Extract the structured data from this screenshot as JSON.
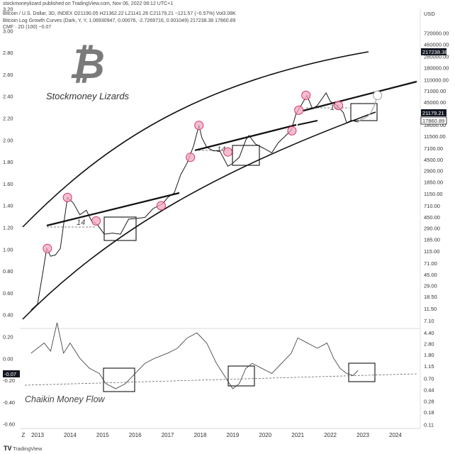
{
  "header": {
    "published": "stockmoneylizard published on TradingView.com, Nov 06, 2022 08:12 UTC+1",
    "symbol_line": "Bitcoin / U.S. Dollar, 3D, INDEX  O21190.05  H21362.22  L21141.26  C21179.21  −121.57 (−0.57%)  Vol3.08K",
    "indicator_line": "Bitcoin Log Growth Curves (Dark, Y, Y, 1.06930947, 0.00076, -2.7269716, 0.001049)  217238.38  17860.89",
    "cmf_line": "CMF · 2D (100)  −0.07"
  },
  "branding": {
    "logo_symbol": "₿",
    "logo_color": "#7a7a7a",
    "title": "Stockmoney Lizards",
    "cmf_title": "Chaikin Money Flow",
    "footer": "TradingView",
    "footer_icon": "tradingview-logo-icon"
  },
  "colors": {
    "price": "#1a1a1a",
    "projection": "#a8a8a8",
    "curve": "#111111",
    "circle_fill": "#f2aac2",
    "circle_stroke": "#d6336c",
    "badge_bg": "#131722",
    "badge_fg": "#ffffff",
    "cmf_line": "#333333"
  },
  "chart_data": {
    "type": "line",
    "title": "",
    "x_ticks": [
      "Z",
      "2013",
      "2014",
      "2015",
      "2016",
      "2017",
      "2018",
      "2019",
      "2020",
      "2021",
      "2022",
      "2023",
      "2024"
    ],
    "right_axis": {
      "unit": "USD",
      "ticks": [
        "720000.00",
        "460000.00",
        "280000.00",
        "180000.00",
        "110000.00",
        "71000.00",
        "45000.00",
        "29000.00",
        "18000.00",
        "11500.00",
        "7100.00",
        "4500.00",
        "2900.00",
        "1850.00",
        "1150.00",
        "710.00",
        "450.00",
        "290.00",
        "185.00",
        "115.00",
        "71.00",
        "45.00",
        "29.00",
        "18.50",
        "11.50",
        "7.10",
        "4.40",
        "2.80",
        "1.80",
        "1.15",
        "0.70",
        "0.44",
        "0.28",
        "0.18",
        "0.11"
      ],
      "scale": "log",
      "badges": [
        "217238.38",
        "21179.21",
        "17860.89"
      ]
    },
    "left_axis": {
      "ticks": [
        "3.20",
        "3.00",
        "2.80",
        "2.60",
        "2.40",
        "2.20",
        "2.00",
        "1.80",
        "1.60",
        "1.40",
        "1.20",
        "1.00",
        "0.80",
        "0.60",
        "0.40",
        "0.20",
        "0.00",
        "-0.20",
        "-0.40",
        "-0.60"
      ],
      "cmf_badge": "-0.07"
    },
    "series": [
      {
        "name": "Bitcoin / U.S. Dollar",
        "x": [
          2012.8,
          2013.0,
          2013.15,
          2013.28,
          2013.4,
          2013.55,
          2013.7,
          2013.82,
          2013.92,
          2014.1,
          2014.3,
          2014.5,
          2014.65,
          2014.85,
          2015.05,
          2015.3,
          2015.55,
          2015.8,
          2016.0,
          2016.3,
          2016.55,
          2016.85,
          2017.0,
          2017.2,
          2017.4,
          2017.6,
          2017.8,
          2017.96,
          2018.05,
          2018.2,
          2018.4,
          2018.6,
          2018.85,
          2018.96,
          2019.2,
          2019.4,
          2019.5,
          2019.7,
          2019.95,
          2020.2,
          2020.4,
          2020.6,
          2020.8,
          2020.95,
          2021.1,
          2021.28,
          2021.45,
          2021.6,
          2021.87,
          2022.0,
          2022.2,
          2022.4,
          2022.5,
          2022.65,
          2022.85
        ],
        "y": [
          11,
          14,
          45,
          130,
          95,
          100,
          130,
          400,
          1000,
          800,
          500,
          600,
          400,
          330,
          230,
          240,
          230,
          420,
          430,
          450,
          640,
          780,
          1000,
          1200,
          2500,
          4000,
          8000,
          18000,
          11000,
          7500,
          6500,
          6500,
          3500,
          3800,
          5000,
          10000,
          12000,
          8500,
          7200,
          6000,
          9000,
          11500,
          15000,
          29000,
          40000,
          60000,
          35000,
          40000,
          66000,
          47000,
          40000,
          30000,
          20000,
          22000,
          20500
        ]
      },
      {
        "name": "Projection",
        "x": [
          2022.85,
          2022.95,
          2023.05,
          2023.15,
          2023.25,
          2023.35,
          2023.45
        ],
        "y": [
          20500,
          23000,
          24000,
          26000,
          30000,
          40000,
          60000
        ]
      },
      {
        "name": "Chaikin Money Flow",
        "x": [
          2012.8,
          2013.0,
          2013.2,
          2013.4,
          2013.6,
          2013.8,
          2014.0,
          2014.3,
          2014.6,
          2014.9,
          2015.1,
          2015.4,
          2015.7,
          2016.0,
          2016.3,
          2016.6,
          2017.0,
          2017.3,
          2017.6,
          2017.9,
          2018.2,
          2018.5,
          2018.8,
          2019.0,
          2019.2,
          2019.4,
          2019.6,
          2019.9,
          2020.2,
          2020.5,
          2020.8,
          2021.0,
          2021.3,
          2021.6,
          2021.9,
          2022.1,
          2022.3,
          2022.5,
          2022.7,
          2022.85
        ],
        "y": [
          0.1,
          0.15,
          0.2,
          0.12,
          0.4,
          0.1,
          0.2,
          0.05,
          -0.05,
          -0.1,
          -0.2,
          -0.25,
          -0.2,
          -0.1,
          0.0,
          0.05,
          0.1,
          0.15,
          0.25,
          0.3,
          0.2,
          0.0,
          -0.15,
          -0.25,
          -0.2,
          -0.05,
          0.0,
          -0.05,
          -0.1,
          0.0,
          0.1,
          0.25,
          0.2,
          0.15,
          0.2,
          0.05,
          -0.05,
          -0.1,
          -0.12,
          -0.07
        ]
      }
    ],
    "annotations": {
      "growth_curves": "upper and lower logarithmic growth curves",
      "trendlines": 4,
      "label": "14",
      "highlight_circles": 15,
      "accumulation_boxes": 6
    }
  }
}
